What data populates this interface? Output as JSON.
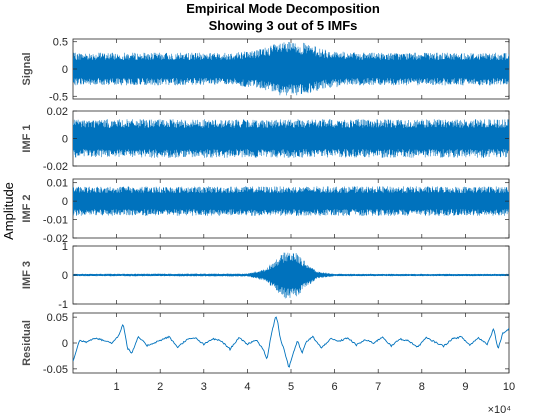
{
  "chart_data": {
    "type": "line",
    "title": [
      "Empirical Mode Decomposition",
      "Showing 3 out of 5 IMFs"
    ],
    "ylabel": "Amplitude",
    "color": "#0072BD",
    "grid": false,
    "x": {
      "range": [
        0,
        100000
      ],
      "ticks": [
        10000,
        20000,
        30000,
        40000,
        50000,
        60000,
        70000,
        80000,
        90000,
        100000
      ],
      "tick_labels": [
        "1",
        "2",
        "3",
        "4",
        "5",
        "6",
        "7",
        "8",
        "9",
        "10"
      ],
      "exponent_label": "×10⁴"
    },
    "panels": [
      {
        "name": "Signal",
        "ylim": [
          -0.55,
          0.55
        ],
        "yticks": [
          -0.5,
          0,
          0.5
        ],
        "ytick_labels": [
          "-0.5",
          "0",
          "0.5"
        ],
        "series": {
          "description": "dense oscillation, envelope grows around center",
          "envelope_x": [
            0,
            35000,
            42000,
            47000,
            50000,
            53000,
            58000,
            65000,
            100000
          ],
          "envelope_y": [
            0.3,
            0.3,
            0.35,
            0.48,
            0.5,
            0.48,
            0.35,
            0.3,
            0.3
          ]
        }
      },
      {
        "name": "IMF 1",
        "ylim": [
          -0.02,
          0.02
        ],
        "yticks": [
          -0.02,
          0,
          0.02
        ],
        "ytick_labels": [
          "-0.02",
          "0",
          "0.02"
        ],
        "series": {
          "envelope_x": [
            0,
            100000
          ],
          "envelope_y": [
            0.014,
            0.014
          ]
        }
      },
      {
        "name": "IMF 2",
        "ylim": [
          -0.02,
          0.012
        ],
        "yticks": [
          -0.02,
          -0.01,
          0,
          0.01
        ],
        "ytick_labels": [
          "-0.02",
          "-0.01",
          "0",
          "0.01"
        ],
        "series": {
          "envelope_x": [
            0,
            100000
          ],
          "envelope_y": [
            0.008,
            0.008
          ]
        }
      },
      {
        "name": "IMF 3",
        "ylim": [
          -1,
          1
        ],
        "yticks": [
          -1,
          0,
          1
        ],
        "ytick_labels": [
          "-1",
          "0",
          "1"
        ],
        "series": {
          "envelope_x": [
            0,
            40000,
            44000,
            47000,
            49000,
            51000,
            53000,
            56000,
            60000,
            100000
          ],
          "envelope_y": [
            0.04,
            0.05,
            0.2,
            0.6,
            0.85,
            0.8,
            0.5,
            0.12,
            0.04,
            0.04
          ]
        }
      },
      {
        "name": "Residual",
        "ylim": [
          -0.058,
          0.058
        ],
        "yticks": [
          -0.05,
          0,
          0.05
        ],
        "ytick_labels": [
          "-0.05",
          "0",
          "0.05"
        ],
        "series": {
          "x": [
            0,
            1500,
            3000,
            5000,
            7000,
            9000,
            10500,
            11500,
            12500,
            13500,
            15000,
            17000,
            20000,
            22000,
            24000,
            26000,
            28000,
            30000,
            32000,
            34000,
            36000,
            38000,
            40000,
            42000,
            43500,
            44500,
            45500,
            46500,
            47000,
            47500,
            48500,
            49500,
            50500,
            51500,
            52500,
            53500,
            55000,
            57000,
            59000,
            61000,
            63000,
            65000,
            67000,
            69000,
            71000,
            73000,
            75000,
            77000,
            79000,
            81000,
            83000,
            85000,
            87000,
            89000,
            91000,
            93000,
            95000,
            96500,
            97500,
            98500,
            100000
          ],
          "y": [
            -0.035,
            0.005,
            0.002,
            0.01,
            0.005,
            0.0,
            0.015,
            0.038,
            -0.01,
            -0.02,
            0.012,
            -0.005,
            0.005,
            0.012,
            -0.008,
            0.006,
            0.01,
            -0.003,
            0.008,
            0.004,
            -0.012,
            0.01,
            -0.002,
            0.006,
            -0.01,
            -0.032,
            0.018,
            0.052,
            0.04,
            0.01,
            -0.015,
            -0.048,
            -0.02,
            0.005,
            -0.02,
            0.002,
            0.012,
            -0.01,
            0.008,
            0.003,
            0.01,
            -0.004,
            0.006,
            0.0,
            0.012,
            -0.006,
            0.008,
            0.004,
            -0.008,
            0.01,
            0.002,
            -0.006,
            0.008,
            0.012,
            -0.004,
            0.01,
            -0.002,
            0.028,
            -0.012,
            0.018,
            0.028
          ]
        }
      }
    ]
  }
}
